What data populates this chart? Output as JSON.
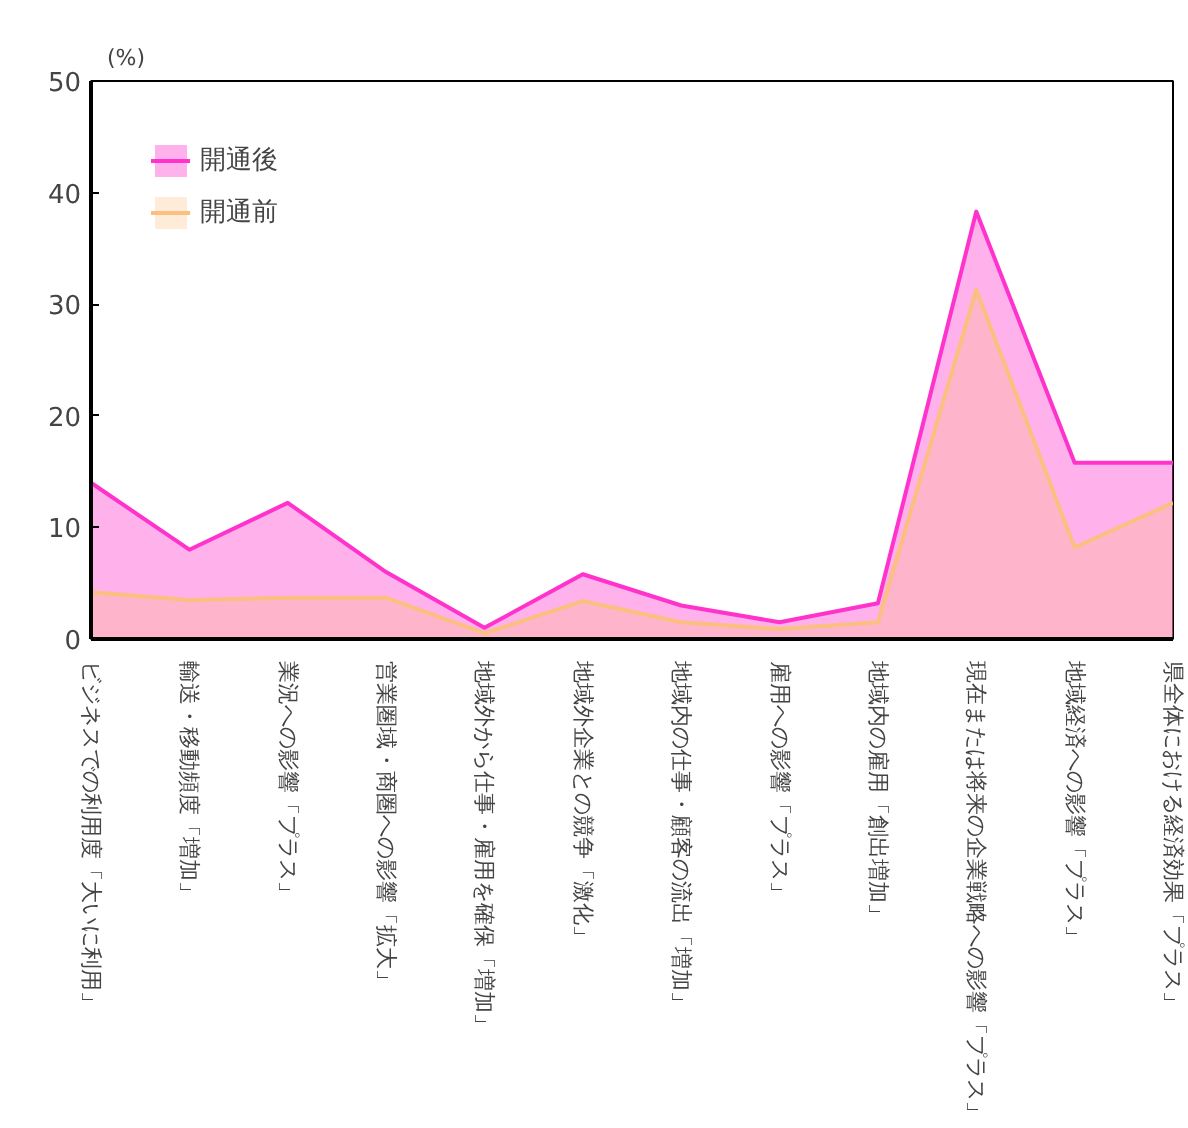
{
  "chart_data": {
    "type": "area",
    "ylabel": "(%)",
    "categories": [
      "ビジネスでの利用度「大いに利用」",
      "輸送・移動頻度「増加」",
      "業況への影響「プラス」",
      "営業圏域・商圏への影響「拡大」",
      "地域外から仕事・雇用を確保「増加」",
      "地域外企業との競争「激化」",
      "地域内の仕事・顧客の流出「増加」",
      "雇用への影響「プラス」",
      "地域内の雇用「創出増加」",
      "現在または将来の企業戦略への影響「プラス」",
      "地域経済への影響「プラス」",
      "県全体における経済効果「プラス」"
    ],
    "series": [
      {
        "name": "開通後",
        "color": "#ff33cc",
        "values": [
          14,
          8,
          12.2,
          6,
          1,
          5.8,
          3,
          1.5,
          3.2,
          38.3,
          15.8,
          15.8
        ]
      },
      {
        "name": "開通前",
        "color": "#fbbf80",
        "values": [
          4.2,
          3.5,
          3.7,
          3.7,
          0.5,
          3.4,
          1.5,
          0.9,
          1.5,
          31.3,
          8.2,
          12.2
        ]
      }
    ],
    "ylim": [
      0,
      50
    ],
    "yticks": [
      0,
      10,
      20,
      30,
      40,
      50
    ],
    "grid": false,
    "legend": "top left"
  }
}
